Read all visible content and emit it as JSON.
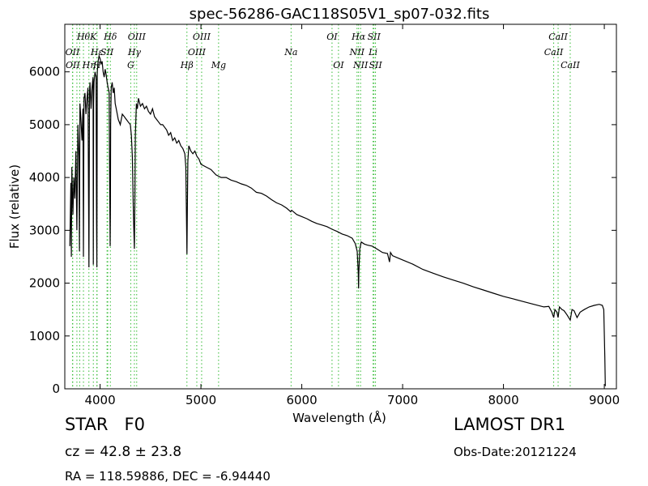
{
  "chart_data": {
    "type": "line",
    "title": "spec-56286-GAC118S05V1_sp07-032.fits",
    "xlabel": "Wavelength (Å)",
    "ylabel": "Flux (relative)",
    "xlim": [
      3650,
      9120
    ],
    "ylim": [
      0,
      6900
    ],
    "xticks": [
      4000,
      5000,
      6000,
      7000,
      8000,
      9000
    ],
    "yticks": [
      0,
      1000,
      2000,
      3000,
      4000,
      5000,
      6000
    ],
    "grid": false,
    "legend": "none",
    "series": [
      {
        "color": "#000000",
        "x": [
          3700,
          3710,
          3715,
          3720,
          3730,
          3740,
          3750,
          3760,
          3770,
          3780,
          3790,
          3795,
          3800,
          3810,
          3820,
          3830,
          3835,
          3840,
          3850,
          3860,
          3870,
          3880,
          3889,
          3895,
          3900,
          3910,
          3920,
          3930,
          3933,
          3936,
          3940,
          3950,
          3960,
          3965,
          3968,
          3972,
          3980,
          3990,
          4000,
          4010,
          4020,
          4030,
          4040,
          4050,
          4060,
          4070,
          4080,
          4090,
          4095,
          4100,
          4102,
          4105,
          4110,
          4120,
          4130,
          4140,
          4150,
          4160,
          4180,
          4200,
          4220,
          4240,
          4260,
          4280,
          4300,
          4310,
          4320,
          4330,
          4340,
          4345,
          4350,
          4360,
          4370,
          4380,
          4400,
          4420,
          4440,
          4460,
          4480,
          4500,
          4520,
          4540,
          4560,
          4580,
          4600,
          4620,
          4640,
          4660,
          4680,
          4700,
          4720,
          4740,
          4760,
          4780,
          4800,
          4820,
          4840,
          4850,
          4855,
          4861,
          4865,
          4870,
          4880,
          4890,
          4900,
          4920,
          4940,
          4960,
          4980,
          5000,
          5050,
          5100,
          5150,
          5200,
          5250,
          5300,
          5350,
          5400,
          5450,
          5500,
          5550,
          5600,
          5650,
          5700,
          5750,
          5800,
          5850,
          5890,
          5900,
          5950,
          6000,
          6050,
          6100,
          6150,
          6200,
          6250,
          6300,
          6350,
          6400,
          6450,
          6500,
          6530,
          6550,
          6560,
          6563,
          6566,
          6575,
          6590,
          6620,
          6650,
          6700,
          6750,
          6800,
          6850,
          6870,
          6880,
          6900,
          6950,
          7000,
          7100,
          7200,
          7300,
          7400,
          7500,
          7600,
          7700,
          7800,
          7900,
          8000,
          8100,
          8200,
          8300,
          8400,
          8450,
          8480,
          8498,
          8510,
          8530,
          8542,
          8555,
          8580,
          8600,
          8630,
          8662,
          8680,
          8700,
          8730,
          8760,
          8800,
          8850,
          8900,
          8950,
          8980,
          8995,
          9005,
          9010
        ],
        "y": [
          2700,
          3900,
          2500,
          4200,
          3300,
          4000,
          3600,
          4500,
          3000,
          5000,
          4400,
          2600,
          5400,
          5100,
          4700,
          5300,
          2500,
          5500,
          5600,
          5200,
          5500,
          5700,
          2300,
          5600,
          5800,
          5300,
          5700,
          5900,
          2350,
          5400,
          5800,
          6000,
          5900,
          3200,
          2300,
          6000,
          6200,
          6300,
          6250,
          6150,
          6200,
          6000,
          5900,
          6050,
          5950,
          5800,
          5700,
          5600,
          4000,
          2700,
          3300,
          5000,
          5700,
          5800,
          5600,
          5700,
          5400,
          5300,
          5100,
          5000,
          5200,
          5150,
          5100,
          5050,
          5000,
          4800,
          4400,
          3300,
          2650,
          3500,
          4800,
          5400,
          5300,
          5500,
          5350,
          5400,
          5300,
          5350,
          5250,
          5200,
          5300,
          5150,
          5100,
          5050,
          5000,
          5000,
          4950,
          4900,
          4800,
          4850,
          4700,
          4750,
          4650,
          4700,
          4600,
          4550,
          4450,
          4200,
          3500,
          2550,
          3400,
          4300,
          4600,
          4550,
          4500,
          4450,
          4500,
          4400,
          4350,
          4250,
          4200,
          4150,
          4050,
          4000,
          4000,
          3950,
          3920,
          3880,
          3850,
          3800,
          3720,
          3700,
          3650,
          3580,
          3520,
          3480,
          3420,
          3350,
          3380,
          3300,
          3260,
          3220,
          3170,
          3130,
          3100,
          3070,
          3020,
          2980,
          2930,
          2900,
          2850,
          2750,
          2600,
          2200,
          1900,
          2200,
          2650,
          2780,
          2740,
          2720,
          2700,
          2640,
          2580,
          2560,
          2400,
          2580,
          2520,
          2480,
          2440,
          2360,
          2260,
          2190,
          2120,
          2060,
          2000,
          1930,
          1870,
          1810,
          1750,
          1700,
          1650,
          1600,
          1550,
          1560,
          1450,
          1350,
          1500,
          1450,
          1350,
          1550,
          1500,
          1480,
          1400,
          1300,
          1500,
          1480,
          1350,
          1450,
          1500,
          1550,
          1580,
          1600,
          1580,
          1500,
          600,
          50
        ]
      }
    ],
    "line_marks": [
      {
        "x": 3726,
        "label": "OII",
        "tier": 2
      },
      {
        "x": 3729,
        "label": "OII",
        "tier": 3
      },
      {
        "x": 3770,
        "label": "",
        "tier": 0
      },
      {
        "x": 3798,
        "label": "",
        "tier": 0
      },
      {
        "x": 3835,
        "label": "Hθ",
        "tier": 1
      },
      {
        "x": 3889,
        "label": "Hη",
        "tier": 3
      },
      {
        "x": 3933,
        "label": "K",
        "tier": 1
      },
      {
        "x": 3968,
        "label": "Hε",
        "tier": 2
      },
      {
        "x": 3970,
        "label": "H",
        "tier": 3
      },
      {
        "x": 4069,
        "label": "SII",
        "tier": 2
      },
      {
        "x": 4076,
        "label": "",
        "tier": 0
      },
      {
        "x": 4102,
        "label": "Hδ",
        "tier": 1
      },
      {
        "x": 4304,
        "label": "G",
        "tier": 3
      },
      {
        "x": 4340,
        "label": "Hγ",
        "tier": 2
      },
      {
        "x": 4363,
        "label": "OIII",
        "tier": 1
      },
      {
        "x": 4861,
        "label": "Hβ",
        "tier": 3
      },
      {
        "x": 4959,
        "label": "OIII",
        "tier": 2
      },
      {
        "x": 5007,
        "label": "OIII",
        "tier": 1
      },
      {
        "x": 5175,
        "label": "Mg",
        "tier": 3
      },
      {
        "x": 5894,
        "label": "Na",
        "tier": 2
      },
      {
        "x": 6300,
        "label": "OI",
        "tier": 1
      },
      {
        "x": 6364,
        "label": "OI",
        "tier": 3
      },
      {
        "x": 6548,
        "label": "NII",
        "tier": 2
      },
      {
        "x": 6563,
        "label": "Hα",
        "tier": 1
      },
      {
        "x": 6583,
        "label": "NII",
        "tier": 3
      },
      {
        "x": 6707,
        "label": "Li",
        "tier": 2
      },
      {
        "x": 6716,
        "label": "SII",
        "tier": 1
      },
      {
        "x": 6731,
        "label": "SII",
        "tier": 3
      },
      {
        "x": 8498,
        "label": "CaII",
        "tier": 2
      },
      {
        "x": 8542,
        "label": "CaII",
        "tier": 1
      },
      {
        "x": 8662,
        "label": "CaII",
        "tier": 3
      }
    ],
    "line_mark_color": "#33bb33"
  },
  "footer": {
    "object_class": "STAR   F0",
    "redshift": "cz = 42.8 ± 23.8",
    "coordinates": "RA = 118.59886, DEC = -6.94440",
    "survey": "LAMOST DR1",
    "obs_date": "Obs-Date:20121224"
  }
}
